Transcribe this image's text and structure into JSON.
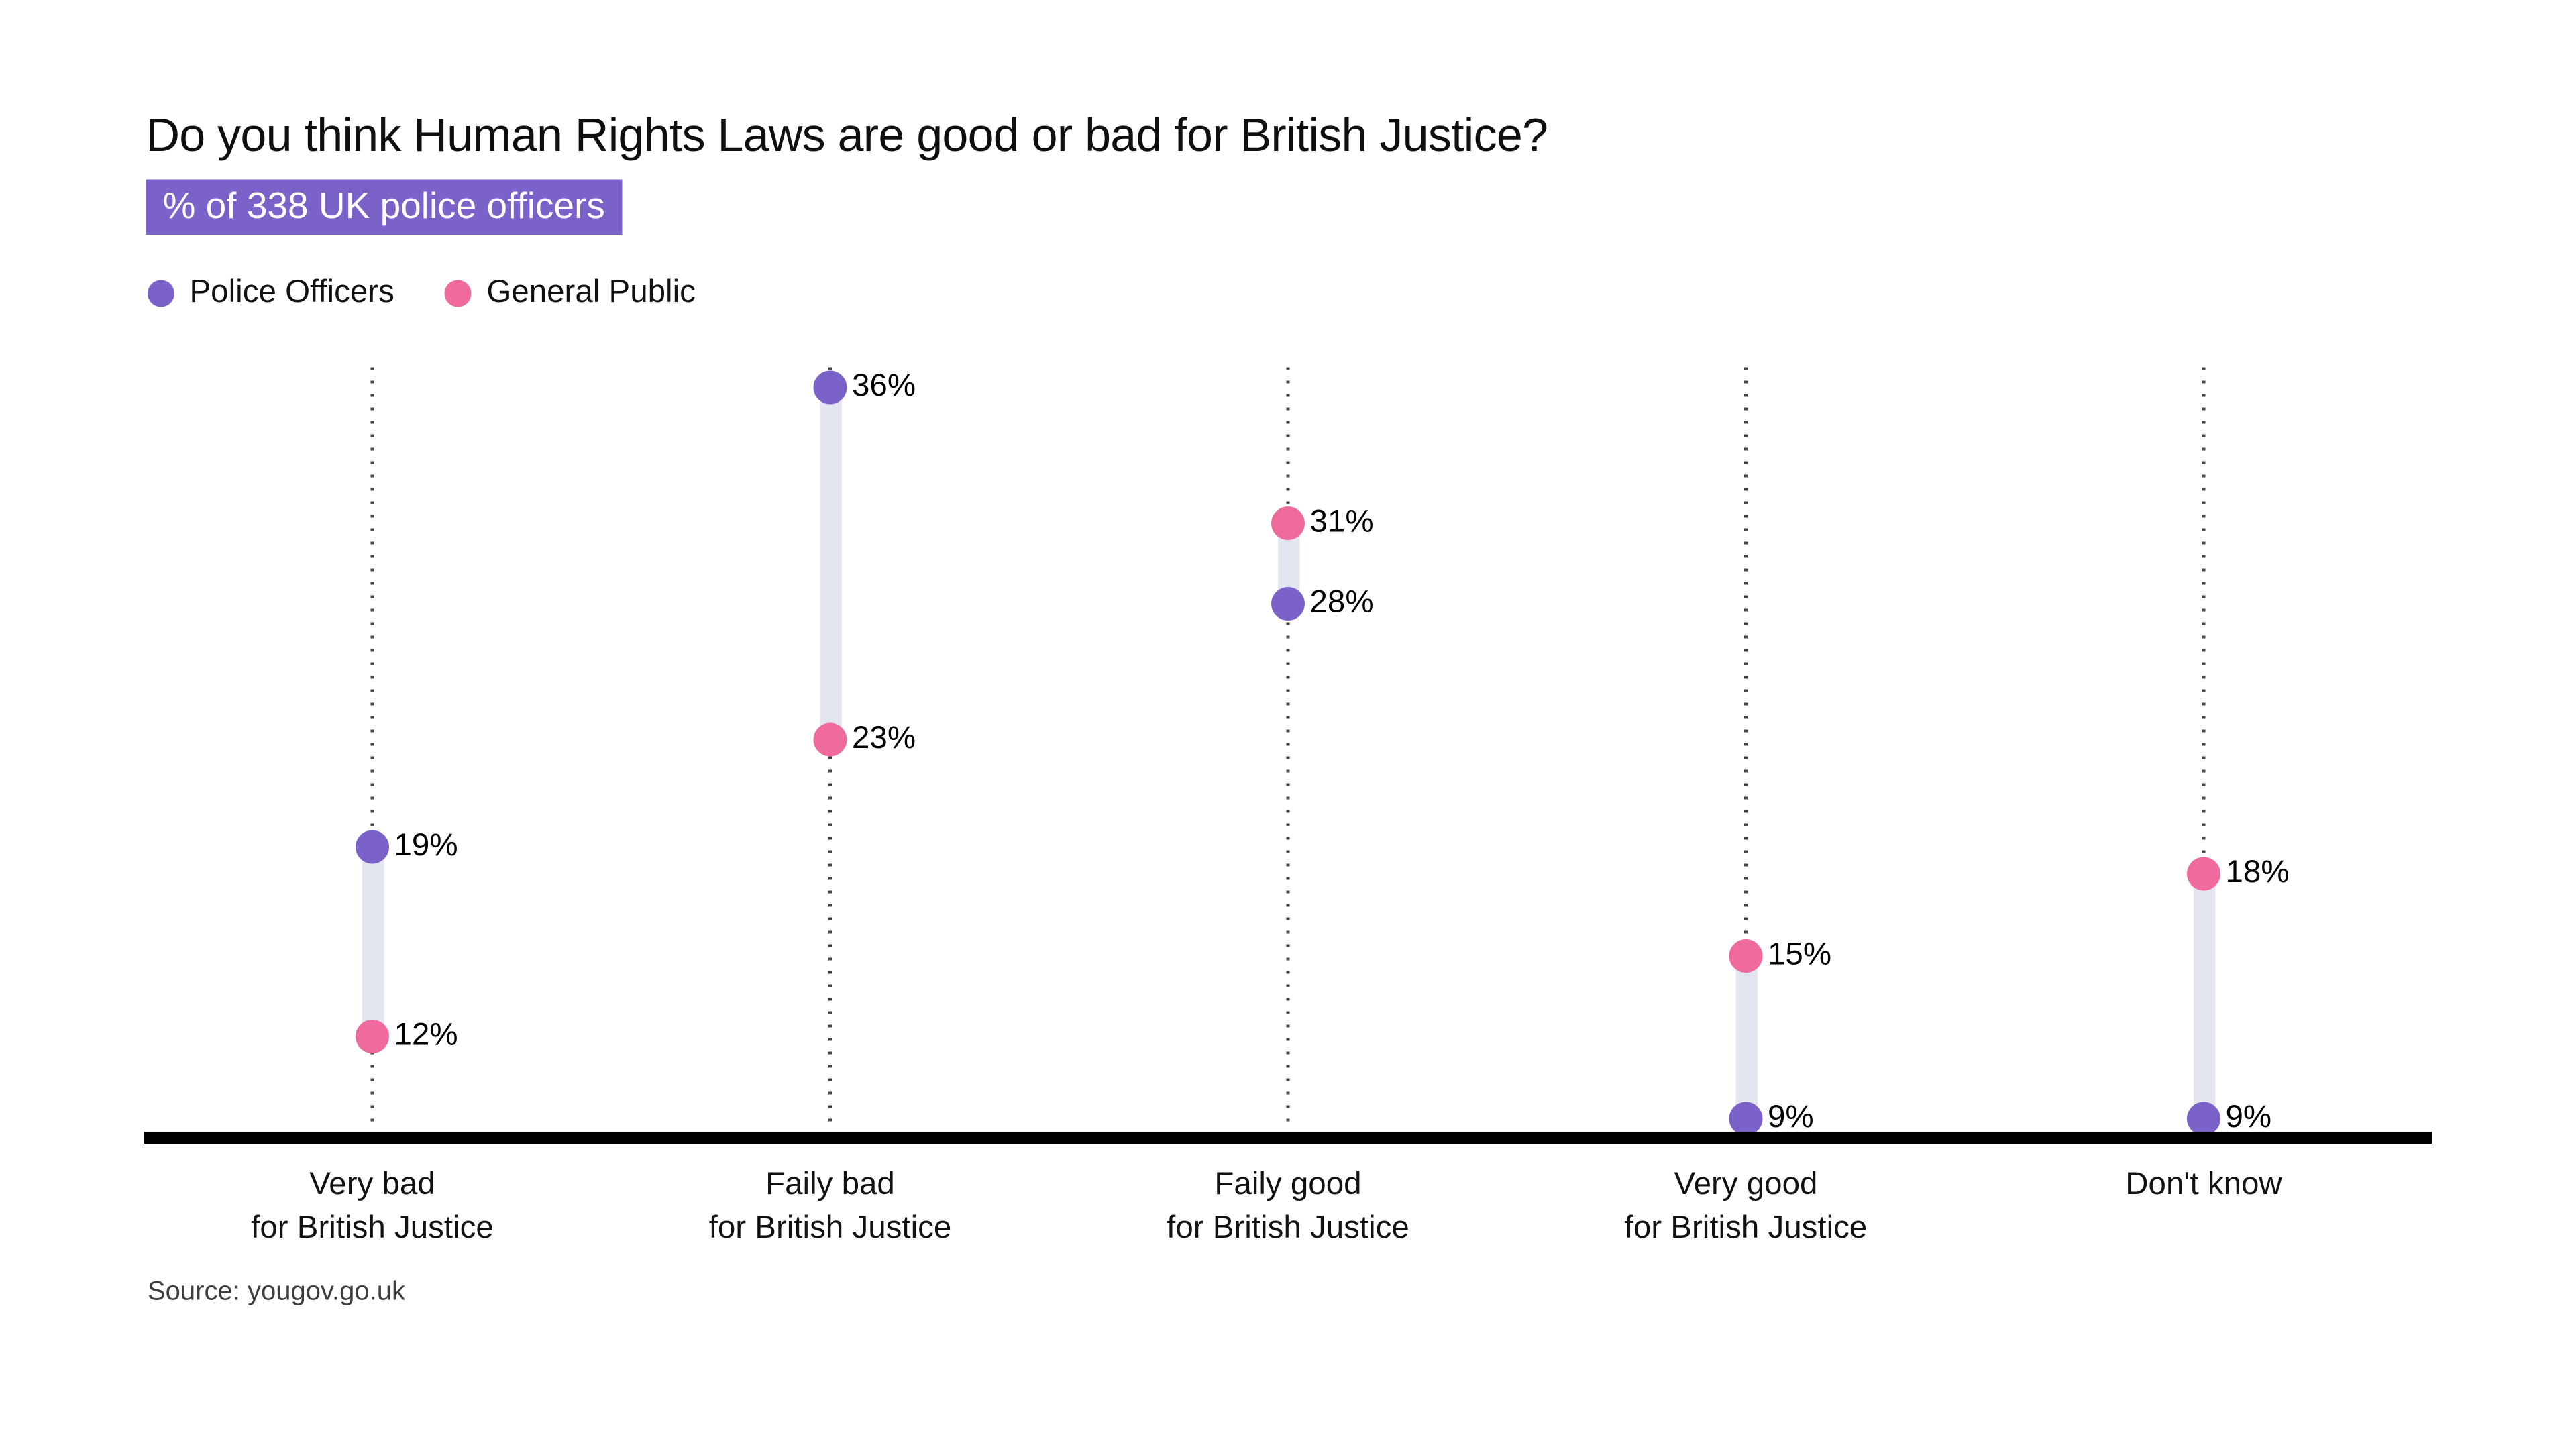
{
  "title": "Do you think Human Rights Laws are good or bad for British Justice?",
  "subtitle_badge": "% of 338 UK police officers",
  "legend": [
    {
      "label": "Police Officers"
    },
    {
      "label": "General Public"
    }
  ],
  "source": "Source: yougov.go.uk",
  "colors": {
    "police": "#7B62C8",
    "public": "#EF6B9D",
    "connector_band": "#E3E5F1",
    "badge_bg": "#7B62C8",
    "badge_text": "#FFFFFF",
    "axis_line": "#000000",
    "dotted_line": "#444444",
    "title_text": "#0F0F0F",
    "source_text": "#3D3D3D"
  },
  "chart_data": {
    "type": "dumbbell",
    "title": "Do you think Human Rights Laws are good or bad for British Justice?",
    "subtitle": "% of 338 UK police officers",
    "value_suffix": "%",
    "categories": [
      {
        "line1": "Very bad",
        "line2": "for British Justice"
      },
      {
        "line1": "Faily bad",
        "line2": "for British Justice"
      },
      {
        "line1": "Faily good",
        "line2": "for British Justice"
      },
      {
        "line1": "Very good",
        "line2": "for British Justice"
      },
      {
        "line1": "Don't know",
        "line2": ""
      }
    ],
    "series": [
      {
        "name": "Police Officers",
        "color": "#7B62C8",
        "values": [
          19,
          36,
          28,
          9,
          9
        ]
      },
      {
        "name": "General Public",
        "color": "#EF6B9D",
        "values": [
          12,
          23,
          31,
          15,
          18
        ]
      }
    ],
    "ylim": [
      8.6,
      37
    ],
    "grid": "dotted-vertical-per-category",
    "legend_position": "top-left",
    "source": "Source: yougov.go.uk"
  }
}
